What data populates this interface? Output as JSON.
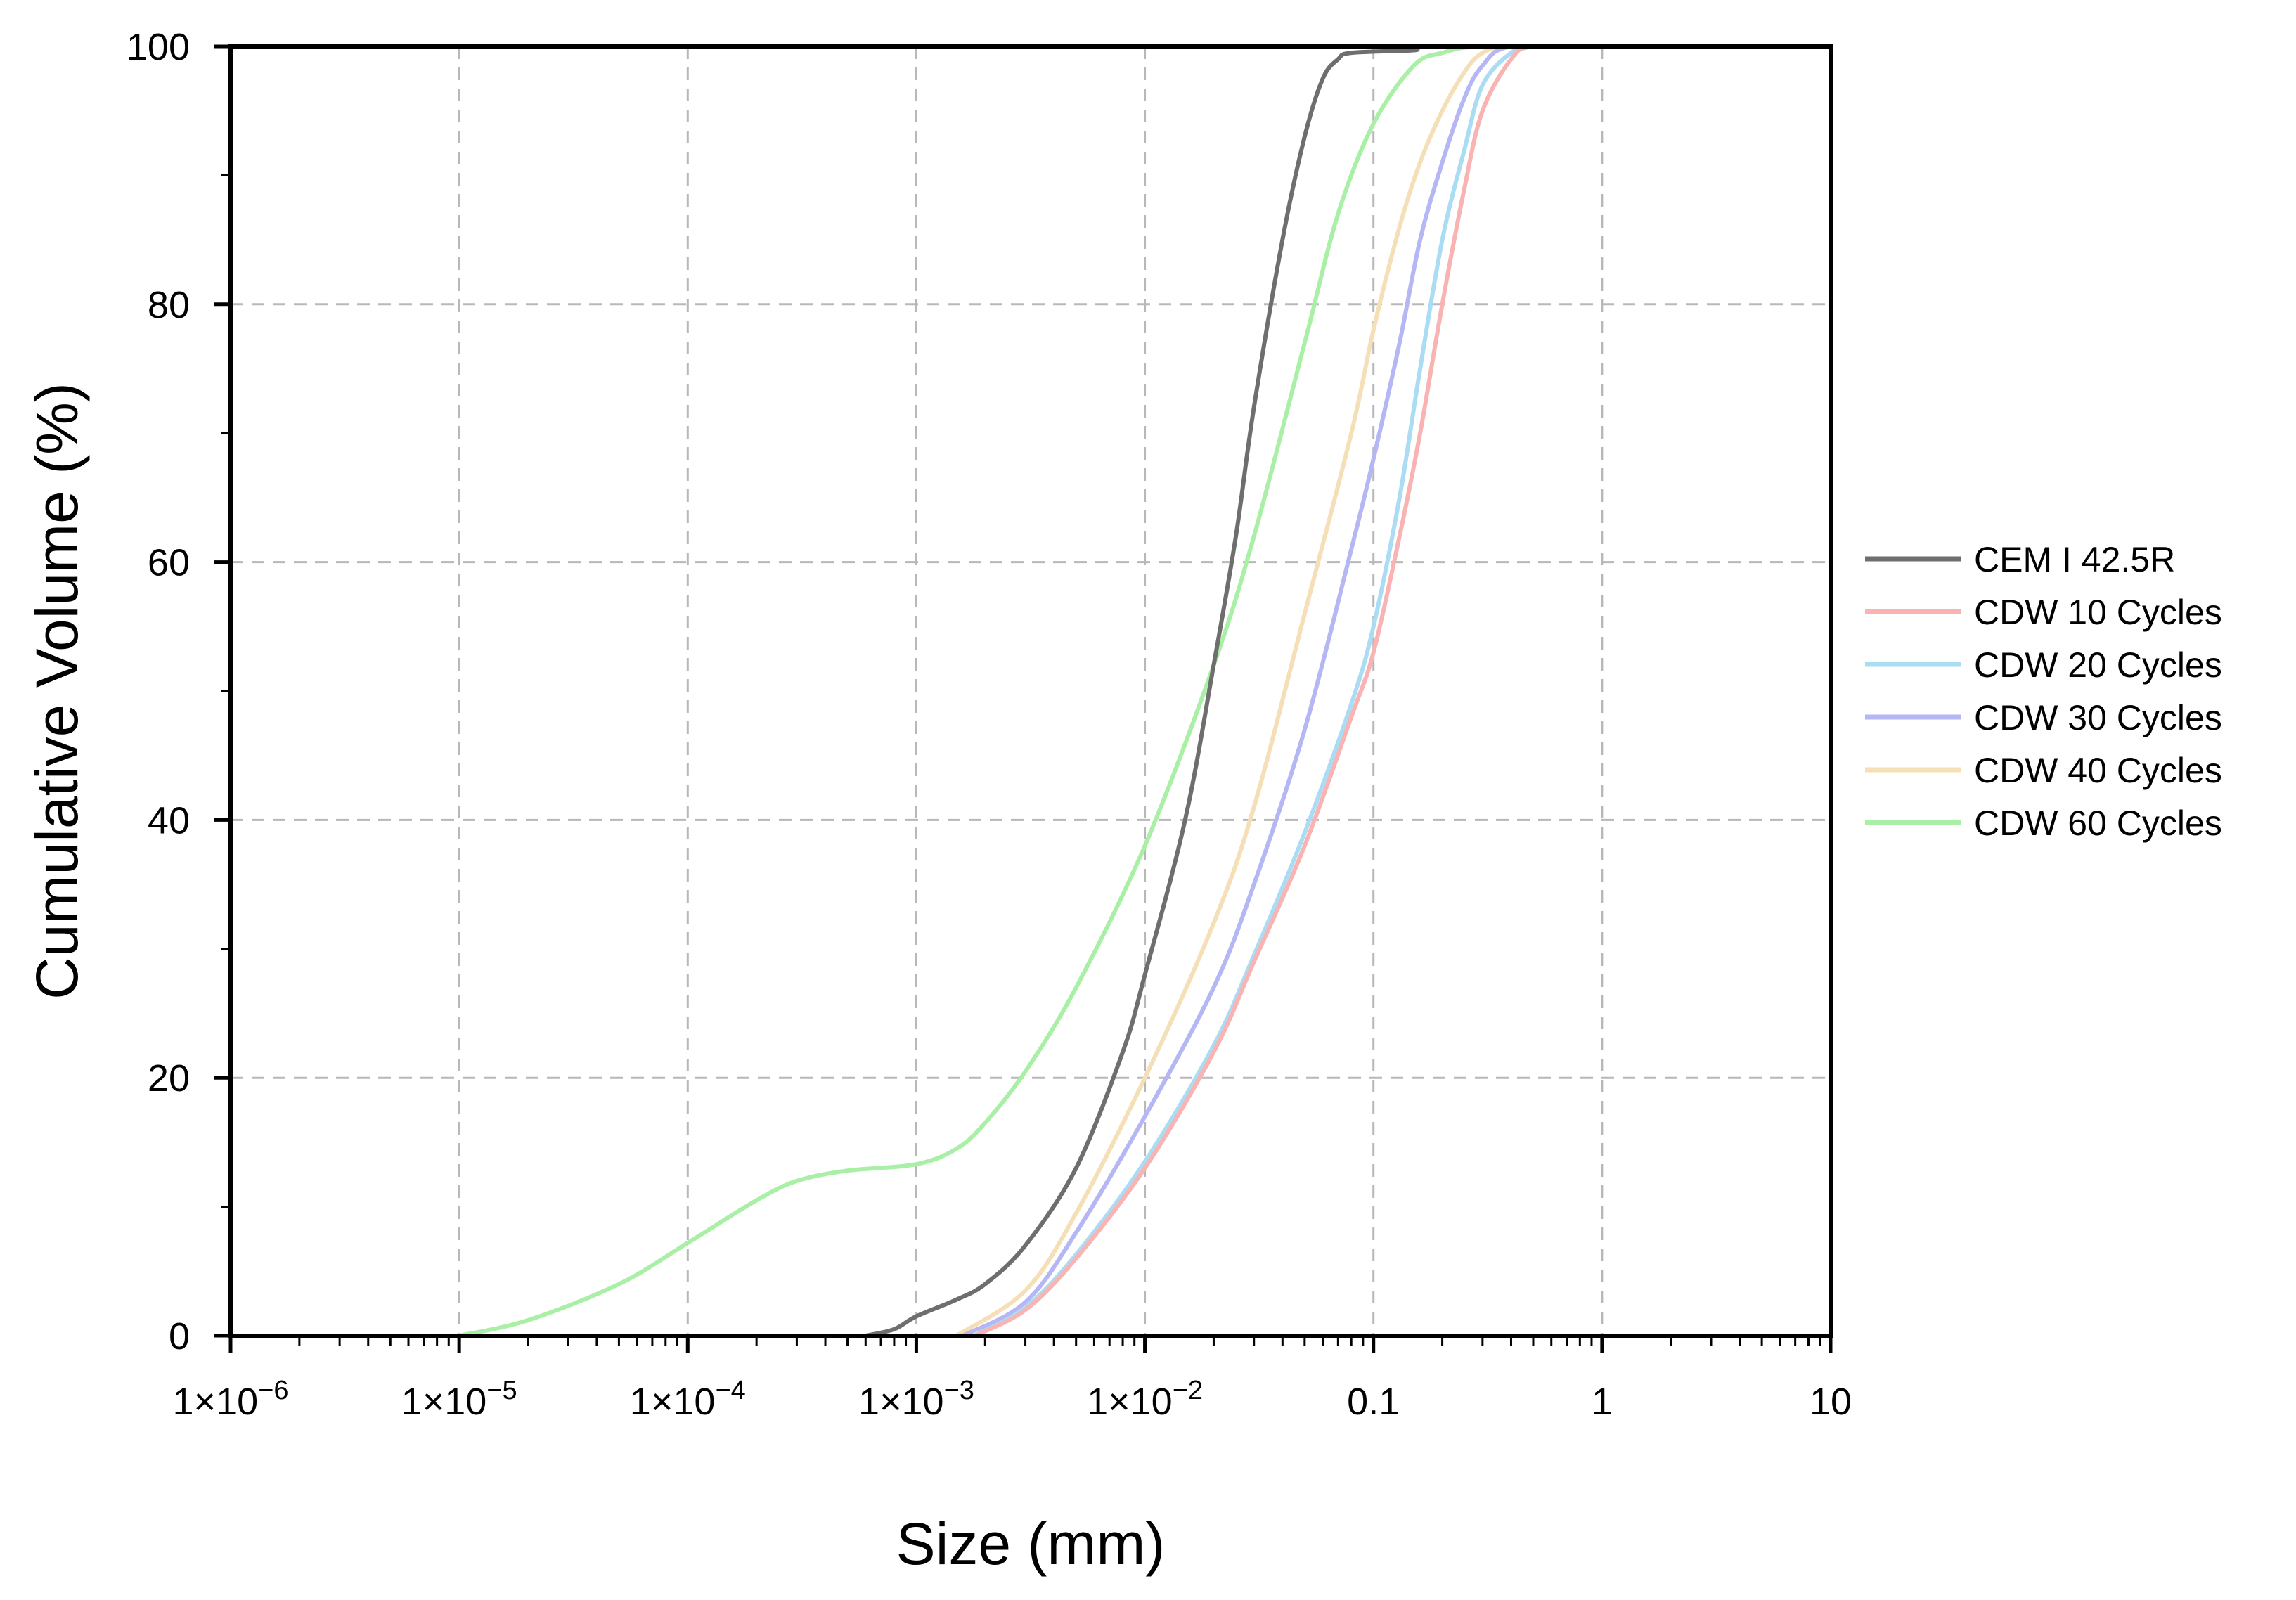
{
  "chart_data": {
    "type": "line",
    "xscale": "log",
    "xlabel": "Size (mm)",
    "ylabel": "Cumulative Volume (%)",
    "xlim": [
      1e-06,
      10
    ],
    "ylim": [
      0,
      100
    ],
    "grid": true,
    "legend_position": "right",
    "x_ticks": [
      {
        "value": 1e-06,
        "mant": "1×10",
        "exp": "−6",
        "plain": ""
      },
      {
        "value": 1e-05,
        "mant": "1×10",
        "exp": "−5",
        "plain": ""
      },
      {
        "value": 0.0001,
        "mant": "1×10",
        "exp": "−4",
        "plain": ""
      },
      {
        "value": 0.001,
        "mant": "1×10",
        "exp": "−3",
        "plain": ""
      },
      {
        "value": 0.01,
        "mant": "1×10",
        "exp": "−2",
        "plain": ""
      },
      {
        "value": 0.1,
        "mant": "",
        "exp": "",
        "plain": "0.1"
      },
      {
        "value": 1,
        "mant": "",
        "exp": "",
        "plain": "1"
      },
      {
        "value": 10,
        "mant": "",
        "exp": "",
        "plain": "10"
      }
    ],
    "y_ticks": [
      {
        "value": 0,
        "label": "0"
      },
      {
        "value": 20,
        "label": "20"
      },
      {
        "value": 40,
        "label": "40"
      },
      {
        "value": 60,
        "label": "60"
      },
      {
        "value": 80,
        "label": "80"
      },
      {
        "value": 100,
        "label": "100"
      }
    ],
    "series": [
      {
        "name": "CEM I 42.5R",
        "color": "#6e6e6e",
        "points": [
          [
            0.0006,
            0
          ],
          [
            0.0008,
            0.5
          ],
          [
            0.001,
            1.5
          ],
          [
            0.0015,
            2.8
          ],
          [
            0.002,
            4
          ],
          [
            0.003,
            7
          ],
          [
            0.005,
            13
          ],
          [
            0.008,
            22
          ],
          [
            0.01,
            28
          ],
          [
            0.015,
            40
          ],
          [
            0.02,
            52
          ],
          [
            0.025,
            62
          ],
          [
            0.03,
            72
          ],
          [
            0.04,
            85
          ],
          [
            0.05,
            93
          ],
          [
            0.06,
            97.5
          ],
          [
            0.07,
            99
          ],
          [
            0.08,
            99.5
          ],
          [
            0.15,
            99.7
          ],
          [
            0.2,
            100
          ],
          [
            3.4,
            100
          ]
        ]
      },
      {
        "name": "CDW 10 Cycles",
        "color": "#f9b3b3",
        "points": [
          [
            0.0018,
            0
          ],
          [
            0.003,
            2
          ],
          [
            0.005,
            6
          ],
          [
            0.01,
            13
          ],
          [
            0.02,
            22
          ],
          [
            0.03,
            29
          ],
          [
            0.05,
            38
          ],
          [
            0.08,
            48
          ],
          [
            0.1,
            53
          ],
          [
            0.13,
            62
          ],
          [
            0.16,
            70
          ],
          [
            0.2,
            80
          ],
          [
            0.25,
            89
          ],
          [
            0.3,
            95
          ],
          [
            0.4,
            99
          ],
          [
            0.5,
            100
          ],
          [
            1.0,
            100
          ]
        ]
      },
      {
        "name": "CDW 20 Cycles",
        "color": "#aadcf4",
        "points": [
          [
            0.0018,
            0
          ],
          [
            0.003,
            2.2
          ],
          [
            0.005,
            6.3
          ],
          [
            0.01,
            13.5
          ],
          [
            0.02,
            22.5
          ],
          [
            0.03,
            29.5
          ],
          [
            0.05,
            39
          ],
          [
            0.08,
            49
          ],
          [
            0.1,
            55
          ],
          [
            0.13,
            65
          ],
          [
            0.16,
            75
          ],
          [
            0.2,
            85
          ],
          [
            0.25,
            92
          ],
          [
            0.3,
            97
          ],
          [
            0.4,
            99.5
          ],
          [
            0.5,
            100
          ],
          [
            1.0,
            100
          ]
        ]
      },
      {
        "name": "CDW 30 Cycles",
        "color": "#b5b6f4",
        "points": [
          [
            0.0016,
            0
          ],
          [
            0.003,
            2.6
          ],
          [
            0.005,
            8
          ],
          [
            0.01,
            17
          ],
          [
            0.02,
            27
          ],
          [
            0.03,
            35
          ],
          [
            0.05,
            47
          ],
          [
            0.08,
            61
          ],
          [
            0.1,
            68
          ],
          [
            0.13,
            77
          ],
          [
            0.16,
            85
          ],
          [
            0.2,
            91
          ],
          [
            0.25,
            96
          ],
          [
            0.3,
            98.5
          ],
          [
            0.4,
            100
          ],
          [
            1.0,
            100
          ]
        ]
      },
      {
        "name": "CDW 40 Cycles",
        "color": "#f5dfb6",
        "points": [
          [
            0.0015,
            0
          ],
          [
            0.003,
            3.5
          ],
          [
            0.005,
            9.5
          ],
          [
            0.01,
            20
          ],
          [
            0.02,
            32
          ],
          [
            0.03,
            41
          ],
          [
            0.05,
            56
          ],
          [
            0.08,
            70
          ],
          [
            0.1,
            78
          ],
          [
            0.13,
            86
          ],
          [
            0.16,
            91
          ],
          [
            0.2,
            95
          ],
          [
            0.25,
            98
          ],
          [
            0.3,
            99.5
          ],
          [
            0.4,
            100
          ],
          [
            1.0,
            100
          ]
        ]
      },
      {
        "name": "CDW 60 Cycles",
        "color": "#a9f0a6",
        "points": [
          [
            1e-05,
            0
          ],
          [
            2e-05,
            1.2
          ],
          [
            5e-05,
            4
          ],
          [
            0.0001,
            7.2
          ],
          [
            0.0002,
            10.5
          ],
          [
            0.0003,
            12
          ],
          [
            0.0005,
            12.8
          ],
          [
            0.001,
            13.3
          ],
          [
            0.0015,
            14.5
          ],
          [
            0.002,
            16.5
          ],
          [
            0.003,
            20.5
          ],
          [
            0.005,
            27
          ],
          [
            0.01,
            38
          ],
          [
            0.02,
            52
          ],
          [
            0.03,
            62
          ],
          [
            0.05,
            77
          ],
          [
            0.07,
            87
          ],
          [
            0.1,
            94
          ],
          [
            0.15,
            98.5
          ],
          [
            0.2,
            99.5
          ],
          [
            0.3,
            100
          ],
          [
            1.0,
            100
          ]
        ]
      }
    ]
  }
}
